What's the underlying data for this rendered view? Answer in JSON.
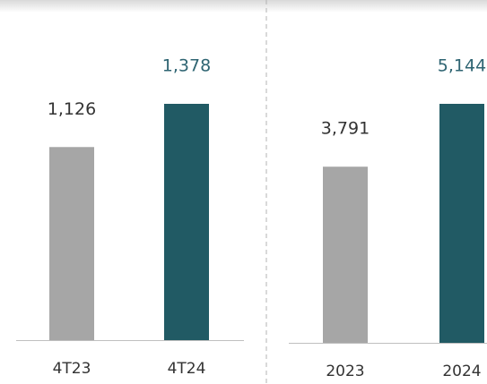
{
  "chart_data": [
    {
      "type": "bar",
      "categories": [
        "4T23",
        "4T24"
      ],
      "values": [
        1126,
        1378
      ],
      "value_labels": [
        "1,126",
        "1,378"
      ],
      "colors": [
        "#a6a6a6",
        "#215a64"
      ],
      "label_colors": [
        "#333333",
        "#2e6472"
      ]
    },
    {
      "type": "bar",
      "categories": [
        "2023",
        "2024"
      ],
      "values": [
        3791,
        5144
      ],
      "value_labels": [
        "3,791",
        "5,144"
      ],
      "colors": [
        "#a6a6a6",
        "#215a64"
      ],
      "label_colors": [
        "#333333",
        "#2e6472"
      ]
    }
  ]
}
